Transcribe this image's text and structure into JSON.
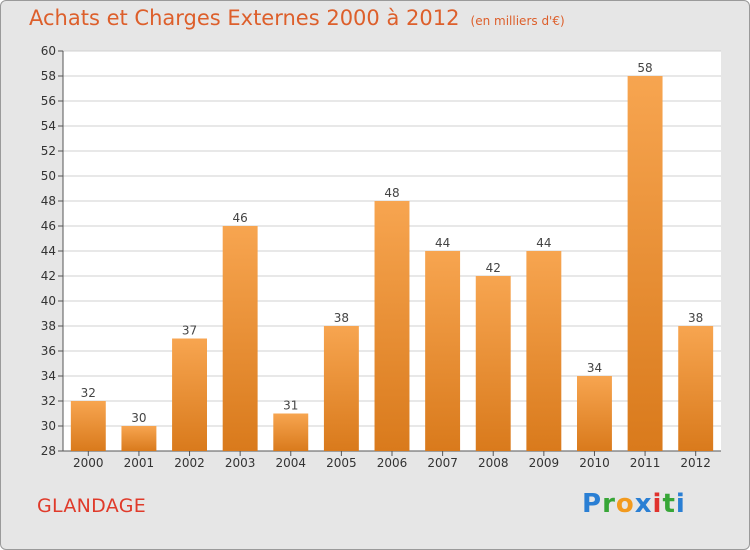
{
  "title": "Achats et Charges Externes 2000 à 2012",
  "unit_note": "(en milliers d'€)",
  "commune": "GLANDAGE",
  "logo": {
    "letters": [
      "P",
      "r",
      "o",
      "x",
      "i",
      "t",
      "i"
    ],
    "colors": [
      "#2a7fd4",
      "#37a637",
      "#f29a1e",
      "#2a7fd4",
      "#e0322d",
      "#37a637",
      "#2a7fd4"
    ]
  },
  "colors": {
    "bar_top": "#f7a550",
    "bar_bottom": "#d97a1c",
    "title": "#dd5f2b",
    "commune": "#e03a2a",
    "plot_bg": "#ffffff",
    "grid": "#d0d0d0"
  },
  "chart_data": {
    "type": "bar",
    "title": "Achats et Charges Externes 2000 à 2012",
    "xlabel": "",
    "ylabel": "",
    "categories": [
      "2000",
      "2001",
      "2002",
      "2003",
      "2004",
      "2005",
      "2006",
      "2007",
      "2008",
      "2009",
      "2010",
      "2011",
      "2012"
    ],
    "values": [
      32,
      30,
      37,
      46,
      31,
      38,
      48,
      44,
      42,
      44,
      34,
      58,
      38
    ],
    "ylim": [
      28,
      60
    ],
    "yticks": [
      28,
      30,
      32,
      34,
      36,
      38,
      40,
      42,
      44,
      46,
      48,
      50,
      52,
      54,
      56,
      58,
      60
    ],
    "grid": true,
    "data_labels": true
  }
}
